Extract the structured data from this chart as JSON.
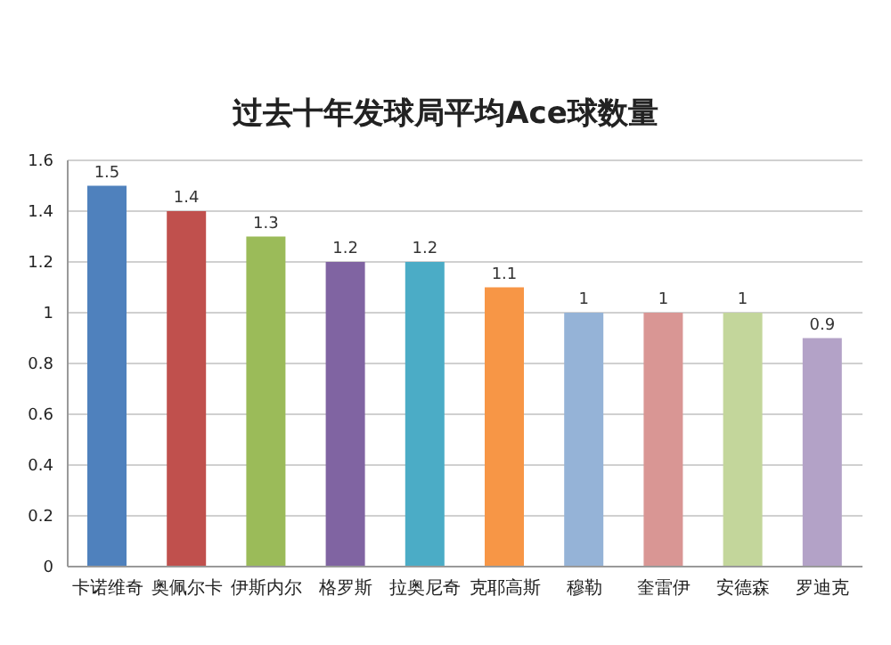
{
  "chart_data": {
    "type": "bar",
    "title": "过去十年发球局平均Ace球数量",
    "categories": [
      "卡诺维奇",
      "奥佩尔卡",
      "伊斯内尔",
      "格罗斯",
      "拉奥尼奇",
      "克耶高斯",
      "穆勒",
      "奎雷伊",
      "安德森",
      "罗迪克"
    ],
    "values": [
      1.5,
      1.4,
      1.3,
      1.2,
      1.2,
      1.1,
      1,
      1,
      1,
      0.9
    ],
    "colors": [
      "#4f81bd",
      "#c0504d",
      "#9bbb59",
      "#8064a2",
      "#4bacc6",
      "#f79646",
      "#95b3d7",
      "#d99694",
      "#c3d69b",
      "#b3a2c7"
    ],
    "ylim": [
      0,
      1.6
    ],
    "yticks": [
      0,
      0.2,
      0.4,
      0.6,
      0.8,
      1,
      1.2,
      1.4,
      1.6
    ],
    "grid": "y",
    "data_labels": true
  }
}
